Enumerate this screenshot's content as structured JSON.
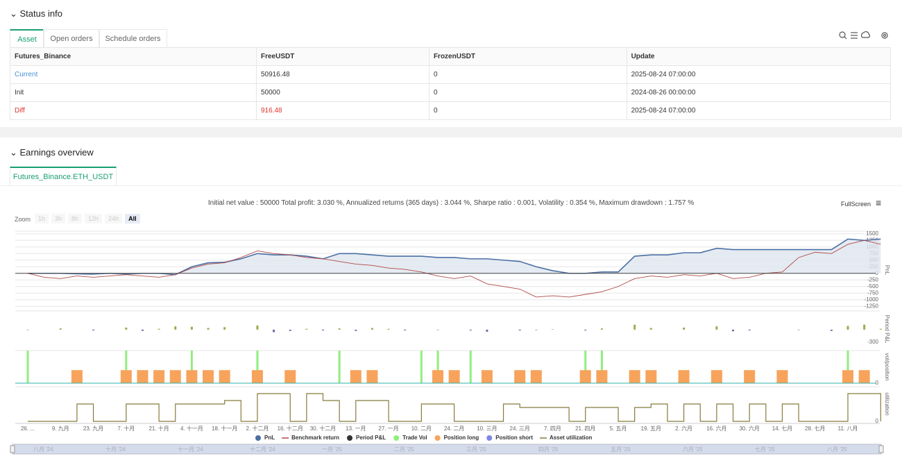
{
  "status_info": {
    "title": "Status info",
    "tabs": [
      "Asset",
      "Open orders",
      "Schedule orders"
    ],
    "table": {
      "header": [
        "Futures_Binance",
        "FreeUSDT",
        "FrozenUSDT",
        "Update"
      ],
      "rows": [
        [
          "Current",
          "50916.48",
          "0",
          "2025-08-24 07:00:00"
        ],
        [
          "Init",
          "50000",
          "0",
          "2024-08-26 00:00:00"
        ],
        [
          "Diff",
          "916.48",
          "0",
          "2025-08-24 07:00:00"
        ]
      ]
    }
  },
  "earnings": {
    "title": "Earnings overview",
    "tab": "Futures_Binance.ETH_USDT",
    "summary": "Initial net value : 50000 Total profit: 3.030 %, Annualized returns (365 days) : 3.044 %, Sharpe ratio : 0.001, Volatility : 0.354 %, Maximum drawdown : 1.757 %",
    "fullscreen": "FullScreen",
    "zoom_label": "Zoom",
    "zoom_buttons": [
      "1h",
      "3h",
      "8h",
      "12h",
      "24h",
      "All"
    ],
    "navigator_labels": [
      "八月 '24",
      "十月 '24",
      "十一月 '24",
      "十二月 '24",
      "一月 '25",
      "二月 '25",
      "三月 '25",
      "四月 '25",
      "五月 '25",
      "六月 '25",
      "七月 '25",
      "八月 '25"
    ]
  },
  "chart_data": [
    {
      "type": "line",
      "ylabel": "PnL",
      "categories": [
        "26. ...",
        null,
        "9. 九月",
        null,
        "23. 九月",
        null,
        "7. 十月",
        null,
        "21. 十月",
        null,
        "4. 十一月",
        null,
        "18. 十一月",
        null,
        "2. 十二月",
        null,
        "16. 十二月",
        null,
        "30. 十二月",
        null,
        "13. 一月",
        null,
        "27. 一月",
        null,
        "10. 二月",
        null,
        "24. 二月",
        null,
        "10. 三月",
        null,
        "24. 三月",
        null,
        "7. 四月",
        null,
        "21. 四月",
        null,
        "5. 五月",
        null,
        "19. 五月",
        null,
        "2. 六月",
        null,
        "16. 六月",
        null,
        "30. 六月",
        null,
        "14. 七月",
        null,
        "28. 七月",
        null,
        "11. 八月",
        null,
        null
      ],
      "series": [
        {
          "name": "PnL",
          "color": "#4a6fa5",
          "values": [
            0,
            0,
            0,
            -20,
            -30,
            0,
            -30,
            0,
            0,
            -50,
            250,
            400,
            420,
            550,
            750,
            700,
            700,
            650,
            550,
            750,
            750,
            700,
            650,
            650,
            650,
            600,
            600,
            550,
            550,
            500,
            450,
            250,
            100,
            0,
            0,
            50,
            50,
            650,
            700,
            700,
            780,
            780,
            950,
            900,
            900,
            900,
            900,
            900,
            900,
            900,
            1300,
            1250,
            1300
          ]
        },
        {
          "name": "Benchmark return",
          "color": "#b04848",
          "values": [
            0,
            -150,
            -200,
            -100,
            -150,
            -100,
            -50,
            -100,
            -150,
            -50,
            200,
            350,
            400,
            600,
            850,
            750,
            700,
            600,
            550,
            450,
            350,
            300,
            200,
            150,
            50,
            -100,
            -200,
            -100,
            -400,
            -500,
            -600,
            -900,
            -850,
            -900,
            -800,
            -700,
            -500,
            -200,
            -100,
            -150,
            -50,
            -100,
            0,
            -200,
            -150,
            0,
            50,
            600,
            800,
            750,
            1100,
            1250,
            1100
          ]
        }
      ],
      "ylim": [
        -1350,
        1600
      ],
      "yticks": [
        1500,
        1250,
        1000,
        750,
        500,
        250,
        0,
        -250,
        -500,
        -750,
        -1000,
        -1250
      ],
      "grid": true
    },
    {
      "type": "bar",
      "ylabel": "Period P&L",
      "series": [
        {
          "name": "Period P&L",
          "color": "#333333",
          "positive_color": "#a3a94c",
          "negative_color": "#6a6aa8",
          "values": [
            -10,
            null,
            30,
            null,
            -20,
            null,
            50,
            -30,
            20,
            80,
            70,
            40,
            60,
            null,
            100,
            -60,
            -30,
            20,
            -20,
            30,
            -30,
            40,
            20,
            -20,
            null,
            -10,
            null,
            -20,
            -50,
            null,
            -20,
            -10,
            10,
            null,
            -20,
            30,
            null,
            120,
            40,
            null,
            50,
            null,
            80,
            -40,
            -20,
            null,
            null,
            -10,
            null,
            -30,
            90,
            120,
            20
          ]
        }
      ],
      "ylim": [
        -420,
        450
      ],
      "yticks": [
        -300
      ]
    },
    {
      "type": "bar",
      "ylabel": "vol/position",
      "series": [
        {
          "name": "Trade Vol",
          "color": "#90ee7e",
          "values": [
            100,
            null,
            null,
            null,
            null,
            null,
            100,
            null,
            null,
            null,
            100,
            null,
            null,
            null,
            100,
            null,
            null,
            null,
            null,
            100,
            null,
            null,
            null,
            null,
            100,
            100,
            null,
            100,
            null,
            null,
            null,
            null,
            null,
            null,
            100,
            100,
            null,
            null,
            null,
            null,
            null,
            null,
            null,
            null,
            null,
            null,
            null,
            null,
            null,
            null,
            100,
            null,
            null
          ]
        },
        {
          "name": "Position long",
          "color": "#f7a35c",
          "values": [
            null,
            null,
            null,
            40,
            null,
            null,
            40,
            40,
            40,
            40,
            40,
            40,
            40,
            null,
            40,
            null,
            40,
            null,
            null,
            null,
            40,
            40,
            null,
            null,
            null,
            40,
            40,
            null,
            40,
            null,
            40,
            40,
            null,
            null,
            40,
            40,
            null,
            40,
            40,
            null,
            40,
            null,
            40,
            null,
            40,
            null,
            40,
            null,
            null,
            null,
            40,
            40,
            null
          ]
        },
        {
          "name": "Position short",
          "color": "#8085e9",
          "values": [
            null,
            null,
            null,
            null,
            null,
            null,
            null,
            null,
            null,
            null,
            null,
            null,
            null,
            null,
            null,
            null,
            null,
            null,
            null,
            null,
            null,
            null,
            null,
            null,
            null,
            null,
            null,
            null,
            null,
            null,
            null,
            null,
            null,
            null,
            null,
            null,
            null,
            null,
            null,
            null,
            null,
            null,
            null,
            null,
            null,
            null,
            null,
            null,
            null,
            null,
            null,
            null,
            null
          ]
        }
      ],
      "ylim": [
        0,
        100
      ],
      "yticks": [
        0
      ]
    },
    {
      "type": "step",
      "ylabel": "utilization",
      "series": [
        {
          "name": "Asset utilization",
          "color": "#857a3a",
          "values": [
            0,
            0,
            0,
            50,
            0,
            0,
            50,
            50,
            0,
            50,
            50,
            50,
            60,
            0,
            80,
            80,
            0,
            80,
            60,
            0,
            60,
            60,
            0,
            0,
            50,
            50,
            0,
            0,
            0,
            50,
            40,
            40,
            40,
            0,
            40,
            40,
            0,
            40,
            50,
            0,
            50,
            0,
            50,
            0,
            50,
            0,
            50,
            0,
            0,
            0,
            80,
            80,
            0
          ]
        }
      ],
      "ylim": [
        0,
        100
      ],
      "yticks": [
        0
      ]
    }
  ]
}
